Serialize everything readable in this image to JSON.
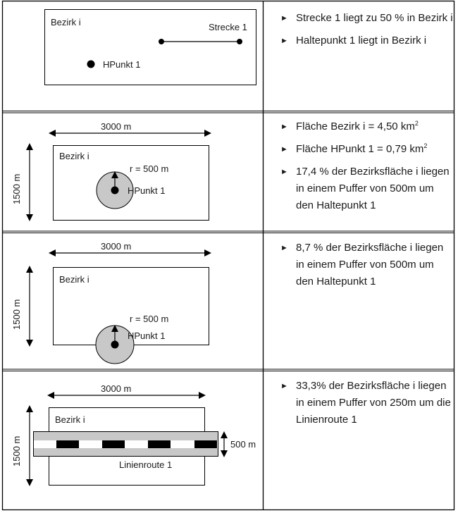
{
  "rows": [
    {
      "diagram": {
        "district": "Bezirk i",
        "route": "Strecke 1",
        "stop": "HPunkt 1"
      },
      "bullets": [
        {
          "text": "Strecke 1 liegt zu 50 % in Bezirk i"
        },
        {
          "text": "Haltepunkt 1 liegt in Bezirk i"
        }
      ]
    },
    {
      "diagram": {
        "width_label": "3000 m",
        "height_label": "1500 m",
        "district": "Bezirk i",
        "radius_label": "r = 500 m",
        "stop": "HPunkt 1"
      },
      "bullets": [
        {
          "text": "Fläche Bezirk i = 4,50 km",
          "sup": "2"
        },
        {
          "text": "Fläche HPunkt 1 = 0,79 km",
          "sup": "2"
        },
        {
          "text": "17,4 % der Bezirksfläche i liegen in einem Puffer von 500m um den Haltepunkt 1"
        }
      ]
    },
    {
      "diagram": {
        "width_label": "3000 m",
        "height_label": "1500 m",
        "district": "Bezirk i",
        "radius_label": "r = 500 m",
        "stop": "HPunkt 1"
      },
      "bullets": [
        {
          "text": "8,7 % der Bezirksfläche i liegen in einem Puffer von 500m um den Haltepunkt 1"
        }
      ]
    },
    {
      "diagram": {
        "width_label": "3000 m",
        "height_label": "1500 m",
        "district": "Bezirk i",
        "buffer_label": "500 m",
        "route": "Linienroute 1"
      },
      "bullets": [
        {
          "text": "33,3% der Bezirksfläche i liegen in einem Puffer von 250m um die Linienroute 1"
        }
      ]
    }
  ],
  "colors": {
    "buffer_fill": "#c8c8c8",
    "line": "#000000",
    "text": "#1a1a1a"
  }
}
